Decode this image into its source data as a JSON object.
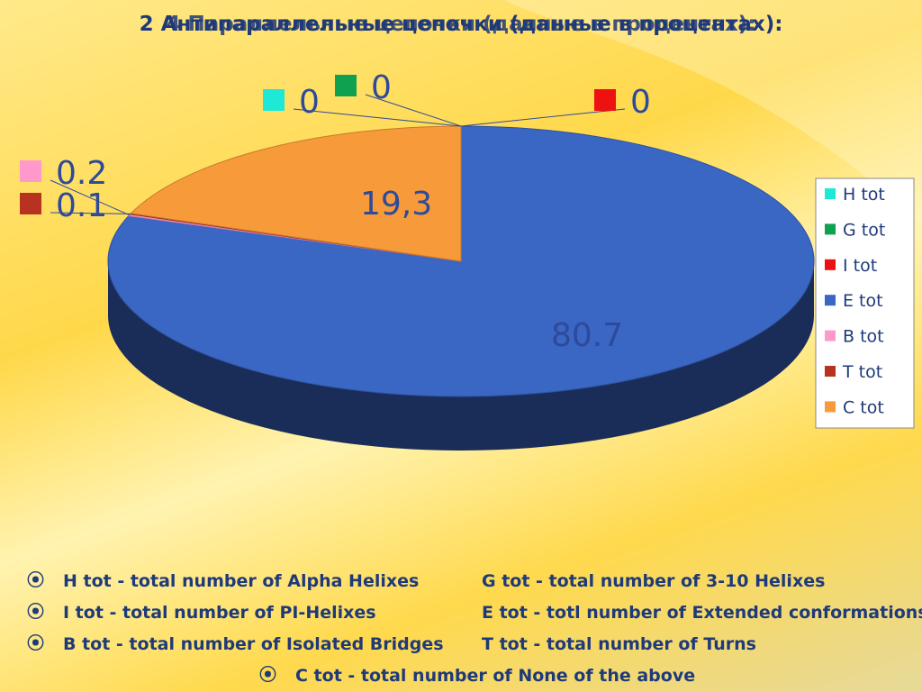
{
  "chart_data": {
    "type": "pie",
    "titles": [
      "2 Антипараллельные цепочки (данные в процентах):",
      "4 Параллельные цепочки (данные в процентах):"
    ],
    "categories": [
      "H tot",
      "G tot",
      "I tot",
      "E tot",
      "B tot",
      "T tot",
      "C tot"
    ],
    "values": [
      0,
      0,
      0,
      80.7,
      0.2,
      0.1,
      19.3
    ],
    "value_labels": [
      "0",
      "0",
      "0",
      "80.7",
      "0.2",
      "0.1",
      "19,3"
    ],
    "colors": [
      "#1de9d6",
      "#0fa050",
      "#ee1111",
      "#3a66c4",
      "#ff99cc",
      "#b83220",
      "#f79a3a"
    ],
    "legend": "right",
    "notes": [
      "H tot - total number of Alpha Helixes",
      "G tot - total number of 3-10 Helixes",
      "I tot - total number of PI-Helixes",
      "E tot - totl number of Extended conformations",
      "B tot - total number of Isolated Bridges",
      "T tot - total number of Turns",
      "C tot - total number of None of the above"
    ]
  }
}
